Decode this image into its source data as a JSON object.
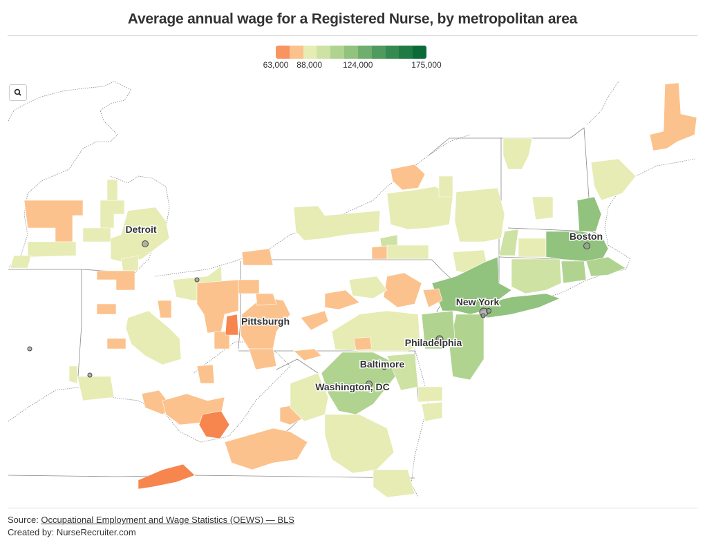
{
  "title": "Average annual wage for a Registered Nurse, by metropolitan area",
  "legend": {
    "colors": [
      "#f99460",
      "#fcc28d",
      "#e6ecb4",
      "#cde2a3",
      "#b0d48f",
      "#91c27e",
      "#6fae6d",
      "#4f9a5e",
      "#358a50",
      "#1f7a44",
      "#0a6b38"
    ],
    "labels": [
      {
        "text": "63,000",
        "value": 63000
      },
      {
        "text": "88,000",
        "value": 88000
      },
      {
        "text": "124,000",
        "value": 124000
      },
      {
        "text": "175,000",
        "value": 175000
      }
    ],
    "min": 63000,
    "max": 175000
  },
  "cities": [
    {
      "name": "Detroit"
    },
    {
      "name": "Pittsburgh"
    },
    {
      "name": "Boston"
    },
    {
      "name": "New York"
    },
    {
      "name": "Philadelphia"
    },
    {
      "name": "Baltimore"
    },
    {
      "name": "Washington, DC"
    }
  ],
  "footer": {
    "source_prefix": "Source: ",
    "source_link": "Occupational Employment and Wage Statistics (OEWS) — BLS",
    "created_by": "Created by: NurseRecruiter.com"
  },
  "icons": {
    "zoom": "search-icon"
  }
}
